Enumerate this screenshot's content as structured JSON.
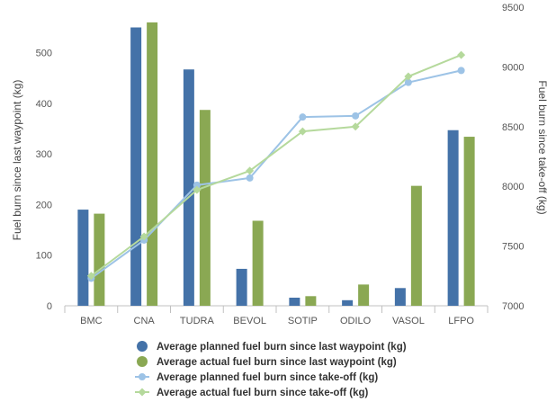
{
  "chart_data": {
    "type": "bar",
    "categories": [
      "BMC",
      "CNA",
      "TUDRA",
      "BEVOL",
      "SOTIP",
      "ODILO",
      "VASOL",
      "LFPO"
    ],
    "y_left": {
      "label": "Fuel burn since last waypoint (kg)",
      "range": [
        0,
        590
      ],
      "ticks": [
        0,
        100,
        200,
        300,
        400,
        500
      ]
    },
    "y_right": {
      "label": "Fuel burn since take-off (kg)",
      "range": [
        7000,
        9500
      ],
      "ticks": [
        7000,
        7500,
        8000,
        8500,
        9000,
        9500
      ]
    },
    "series": [
      {
        "name": "Average planned fuel burn since last waypoint (kg)",
        "type": "bar",
        "axis": "left",
        "color": "#4472a8",
        "values": [
          190,
          550,
          467,
          73,
          16,
          11,
          35,
          347
        ]
      },
      {
        "name": "Average actual fuel burn since last waypoint (kg)",
        "type": "bar",
        "axis": "left",
        "color": "#8aa853",
        "values": [
          182,
          560,
          387,
          168,
          19,
          42,
          237,
          334
        ]
      },
      {
        "name": "Average planned fuel burn since take-off (kg)",
        "type": "line",
        "axis": "right",
        "color": "#9dc3e6",
        "values": [
          7230,
          7550,
          8010,
          8070,
          8580,
          8590,
          8870,
          8970
        ]
      },
      {
        "name": "Average actual fuel burn since take-off (kg)",
        "type": "line",
        "axis": "right",
        "color": "#b5d99c",
        "values": [
          7250,
          7580,
          7970,
          8130,
          8460,
          8500,
          8920,
          9100
        ]
      }
    ],
    "legend_position": "bottom",
    "grid": false
  }
}
